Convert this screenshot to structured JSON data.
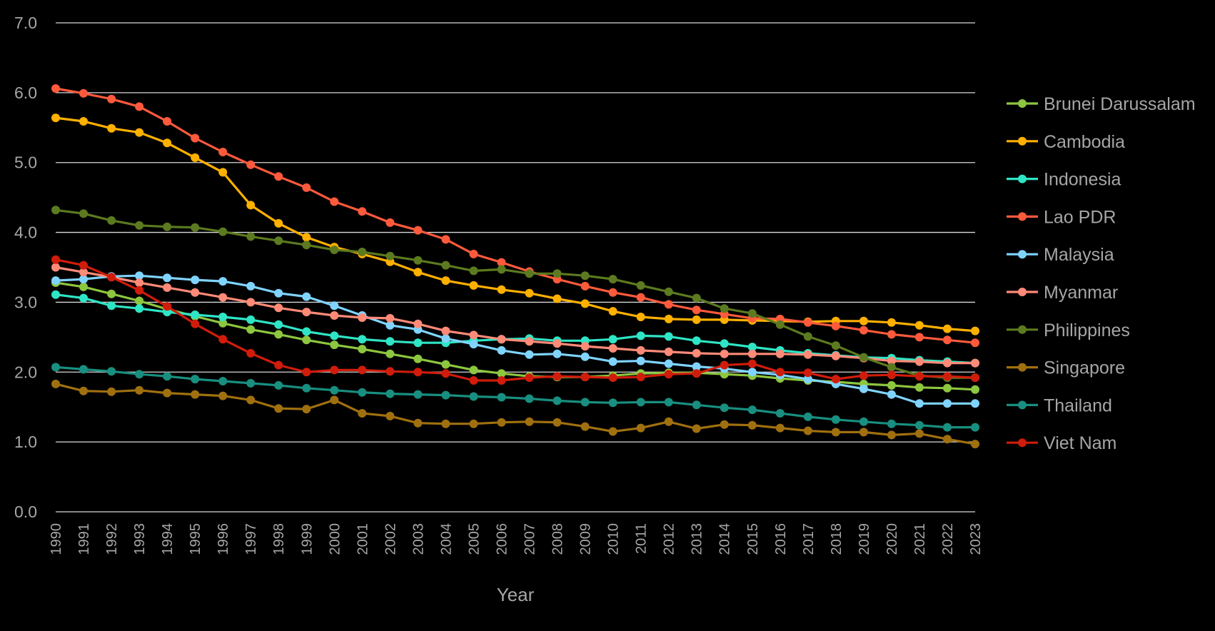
{
  "chart_data": {
    "type": "line",
    "title": "",
    "xlabel": "Year",
    "ylabel": "",
    "ylim": [
      0,
      7
    ],
    "y_ticks": [
      "0.0",
      "1.0",
      "2.0",
      "3.0",
      "4.0",
      "5.0",
      "6.0",
      "7.0"
    ],
    "grid": true,
    "legend_position": "right",
    "x": [
      "1990",
      "1991",
      "1992",
      "1993",
      "1994",
      "1995",
      "1996",
      "1997",
      "1998",
      "1999",
      "2000",
      "2001",
      "2002",
      "2003",
      "2004",
      "2005",
      "2006",
      "2007",
      "2008",
      "2009",
      "2010",
      "2011",
      "2012",
      "2013",
      "2014",
      "2015",
      "2016",
      "2017",
      "2018",
      "2019",
      "2020",
      "2021",
      "2022",
      "2023"
    ],
    "series": [
      {
        "name": "Brunei Darussalam",
        "color": "#8DC63F",
        "values": [
          3.28,
          3.22,
          3.12,
          3.02,
          2.9,
          2.8,
          2.7,
          2.61,
          2.54,
          2.46,
          2.39,
          2.33,
          2.26,
          2.19,
          2.11,
          2.03,
          1.98,
          1.94,
          1.93,
          1.93,
          1.95,
          1.98,
          1.99,
          1.99,
          1.97,
          1.95,
          1.91,
          1.88,
          1.86,
          1.83,
          1.81,
          1.78,
          1.77,
          1.75
        ]
      },
      {
        "name": "Cambodia",
        "color": "#FFB000",
        "values": [
          5.64,
          5.59,
          5.49,
          5.43,
          5.28,
          5.07,
          4.86,
          4.39,
          4.13,
          3.93,
          3.79,
          3.69,
          3.58,
          3.43,
          3.31,
          3.24,
          3.18,
          3.13,
          3.05,
          2.98,
          2.87,
          2.79,
          2.76,
          2.75,
          2.75,
          2.74,
          2.73,
          2.72,
          2.73,
          2.73,
          2.71,
          2.67,
          2.62,
          2.59
        ]
      },
      {
        "name": "Indonesia",
        "color": "#2EE5C5",
        "values": [
          3.11,
          3.06,
          2.95,
          2.91,
          2.86,
          2.82,
          2.79,
          2.75,
          2.68,
          2.58,
          2.52,
          2.47,
          2.44,
          2.42,
          2.42,
          2.45,
          2.47,
          2.48,
          2.45,
          2.45,
          2.47,
          2.52,
          2.51,
          2.45,
          2.41,
          2.36,
          2.31,
          2.27,
          2.24,
          2.21,
          2.2,
          2.17,
          2.15,
          2.13
        ]
      },
      {
        "name": "Lao PDR",
        "color": "#FF5A3C",
        "values": [
          6.06,
          5.99,
          5.91,
          5.8,
          5.59,
          5.35,
          5.15,
          4.97,
          4.8,
          4.64,
          4.44,
          4.3,
          4.14,
          4.03,
          3.9,
          3.69,
          3.57,
          3.44,
          3.33,
          3.23,
          3.14,
          3.07,
          2.97,
          2.89,
          2.83,
          2.77,
          2.76,
          2.71,
          2.66,
          2.6,
          2.54,
          2.5,
          2.46,
          2.42
        ]
      },
      {
        "name": "Malaysia",
        "color": "#7FD4FF",
        "values": [
          3.31,
          3.33,
          3.37,
          3.38,
          3.35,
          3.32,
          3.3,
          3.23,
          3.13,
          3.08,
          2.95,
          2.81,
          2.67,
          2.61,
          2.48,
          2.4,
          2.31,
          2.25,
          2.26,
          2.22,
          2.15,
          2.16,
          2.12,
          2.08,
          2.05,
          2.0,
          1.96,
          1.9,
          1.83,
          1.76,
          1.68,
          1.55,
          1.55,
          1.55
        ]
      },
      {
        "name": "Myanmar",
        "color": "#FF8A78",
        "values": [
          3.5,
          3.43,
          3.36,
          3.28,
          3.21,
          3.14,
          3.07,
          3.0,
          2.92,
          2.86,
          2.81,
          2.78,
          2.77,
          2.69,
          2.59,
          2.53,
          2.47,
          2.44,
          2.41,
          2.37,
          2.34,
          2.31,
          2.29,
          2.27,
          2.26,
          2.26,
          2.26,
          2.25,
          2.23,
          2.2,
          2.16,
          2.15,
          2.13,
          2.13
        ]
      },
      {
        "name": "Philippines",
        "color": "#5C7A1F",
        "values": [
          4.32,
          4.27,
          4.17,
          4.1,
          4.08,
          4.07,
          4.01,
          3.94,
          3.88,
          3.82,
          3.75,
          3.72,
          3.66,
          3.6,
          3.53,
          3.45,
          3.47,
          3.41,
          3.41,
          3.38,
          3.33,
          3.24,
          3.15,
          3.06,
          2.91,
          2.84,
          2.68,
          2.51,
          2.38,
          2.21,
          2.07,
          1.95,
          1.92,
          1.92
        ]
      },
      {
        "name": "Singapore",
        "color": "#A0700F",
        "values": [
          1.83,
          1.73,
          1.72,
          1.74,
          1.7,
          1.68,
          1.66,
          1.6,
          1.48,
          1.47,
          1.6,
          1.41,
          1.37,
          1.27,
          1.26,
          1.26,
          1.28,
          1.29,
          1.28,
          1.22,
          1.15,
          1.2,
          1.29,
          1.19,
          1.25,
          1.24,
          1.2,
          1.16,
          1.14,
          1.14,
          1.1,
          1.12,
          1.04,
          0.97
        ]
      },
      {
        "name": "Thailand",
        "color": "#188F80",
        "values": [
          2.07,
          2.04,
          2.01,
          1.97,
          1.94,
          1.9,
          1.87,
          1.84,
          1.81,
          1.77,
          1.74,
          1.71,
          1.69,
          1.68,
          1.67,
          1.65,
          1.64,
          1.62,
          1.59,
          1.57,
          1.56,
          1.57,
          1.57,
          1.53,
          1.49,
          1.46,
          1.41,
          1.36,
          1.32,
          1.29,
          1.26,
          1.24,
          1.21,
          1.21
        ]
      },
      {
        "name": "Viet Nam",
        "color": "#D01C0B",
        "values": [
          3.61,
          3.53,
          3.36,
          3.17,
          2.94,
          2.69,
          2.47,
          2.27,
          2.1,
          2.0,
          2.03,
          2.03,
          2.01,
          2.0,
          1.98,
          1.88,
          1.88,
          1.92,
          1.94,
          1.93,
          1.92,
          1.93,
          1.97,
          1.98,
          2.1,
          2.12,
          2.0,
          1.99,
          1.9,
          1.95,
          1.96,
          1.94,
          1.94,
          1.92
        ]
      }
    ]
  }
}
